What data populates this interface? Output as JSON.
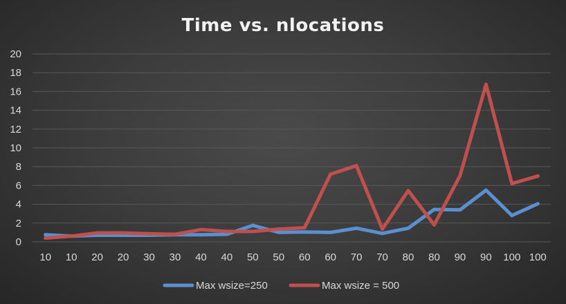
{
  "chart_data": {
    "type": "line",
    "title": "Time vs. nlocations",
    "xlabel": "",
    "ylabel": "",
    "ylim": [
      0,
      20
    ],
    "yticks": [
      "0",
      "2",
      "4",
      "6",
      "8",
      "10",
      "12",
      "14",
      "16",
      "18",
      "20"
    ],
    "grid": true,
    "legend_position": "bottom",
    "categories": [
      "10",
      "10",
      "20",
      "20",
      "30",
      "30",
      "40",
      "40",
      "50",
      "50",
      "60",
      "60",
      "70",
      "70",
      "80",
      "80",
      "90",
      "90",
      "100",
      "100"
    ],
    "series": [
      {
        "name": "Max wsize=250",
        "color": "#5a8fd0",
        "values": [
          0.75,
          0.6,
          0.7,
          0.7,
          0.7,
          0.75,
          0.75,
          0.8,
          1.75,
          1.0,
          1.05,
          1.0,
          1.45,
          0.9,
          1.45,
          3.45,
          3.4,
          5.5,
          2.8,
          4.05
        ]
      },
      {
        "name": "Max wsize = 500",
        "color": "#c0504d",
        "values": [
          0.4,
          0.6,
          0.95,
          0.95,
          0.85,
          0.8,
          1.3,
          1.1,
          1.1,
          1.35,
          1.5,
          7.2,
          8.1,
          1.35,
          5.45,
          1.8,
          7.05,
          16.75,
          6.2,
          7.0
        ]
      }
    ]
  }
}
